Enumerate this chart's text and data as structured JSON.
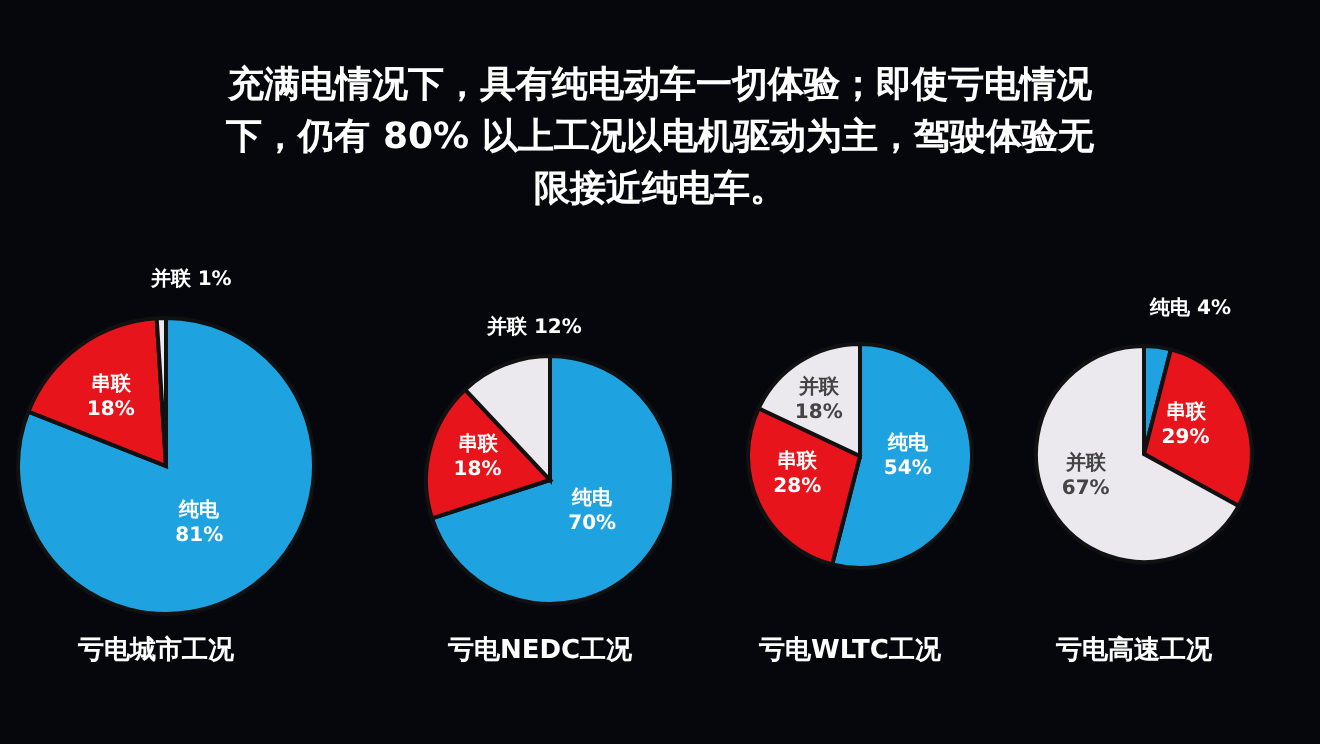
{
  "chart_data": [
    {
      "type": "pie",
      "title": "充满电情况下，具有纯电动车一切体验；即使亏电情况下，仍有 80% 以上工况以电机驱动为主，驾驶体验无限接近纯电车。",
      "xlabel": "亏电城市工况",
      "categories": [
        "纯电",
        "串联",
        "并联"
      ],
      "values": [
        81,
        18,
        1
      ],
      "colors": [
        "#1fa3e0",
        "#e8141c",
        "#ebe8ee"
      ],
      "value_labels": [
        "81%",
        "18%",
        "1%"
      ]
    },
    {
      "type": "pie",
      "xlabel": "亏电NEDC工况",
      "categories": [
        "纯电",
        "串联",
        "并联"
      ],
      "values": [
        70,
        18,
        12
      ],
      "colors": [
        "#1fa3e0",
        "#e8141c",
        "#ebe8ee"
      ],
      "value_labels": [
        "70%",
        "18%",
        "12%"
      ]
    },
    {
      "type": "pie",
      "xlabel": "亏电WLTC工况",
      "categories": [
        "纯电",
        "串联",
        "并联"
      ],
      "values": [
        54,
        28,
        18
      ],
      "colors": [
        "#1fa3e0",
        "#e8141c",
        "#ebe8ee"
      ],
      "value_labels": [
        "54%",
        "28%",
        "18%"
      ]
    },
    {
      "type": "pie",
      "xlabel": "亏电高速工况",
      "categories": [
        "纯电",
        "串联",
        "并联"
      ],
      "values": [
        4,
        29,
        67
      ],
      "colors": [
        "#1fa3e0",
        "#e8141c",
        "#ebe8ee"
      ],
      "value_labels": [
        "4%",
        "29%",
        "67%"
      ]
    }
  ]
}
